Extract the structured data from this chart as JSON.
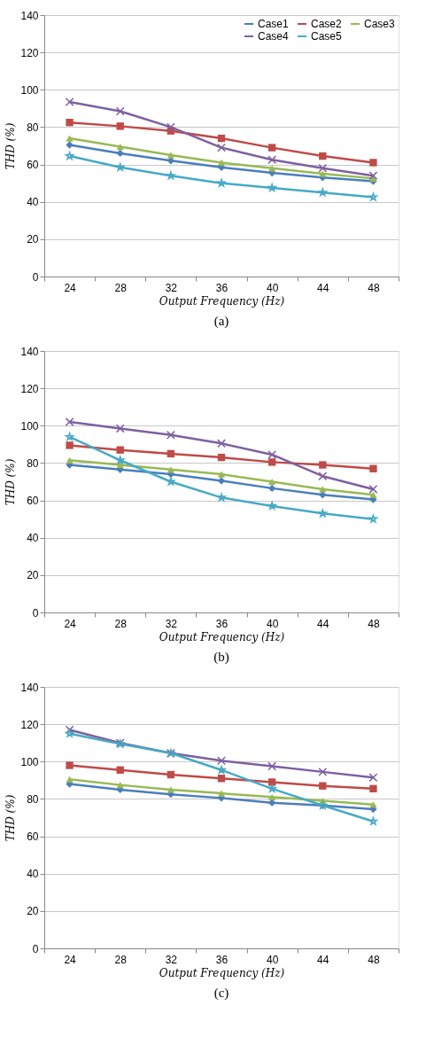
{
  "chart_data": [
    {
      "type": "line",
      "xlabel": "Output Frequency (Hz)",
      "ylabel": "THD (%)",
      "annotations": [
        "(a)"
      ],
      "categories": [
        "24",
        "28",
        "32",
        "36",
        "40",
        "44",
        "48"
      ],
      "ylim": [
        0,
        140
      ],
      "yticks": [
        0,
        20,
        40,
        60,
        80,
        100,
        120,
        140
      ],
      "grid": "y",
      "legend": "top right",
      "series": [
        {
          "name": "Case1",
          "color": "#4a7ebb",
          "marker": "diamond",
          "values": [
            70.5,
            66,
            62,
            58.5,
            55.5,
            53,
            51
          ]
        },
        {
          "name": "Case2",
          "color": "#be4b48",
          "marker": "square",
          "values": [
            82.5,
            80.5,
            78,
            74,
            69,
            64.5,
            61
          ]
        },
        {
          "name": "Case3",
          "color": "#98b954",
          "marker": "triangle",
          "values": [
            74,
            69.5,
            65,
            61,
            58,
            55,
            52.5
          ]
        },
        {
          "name": "Case4",
          "color": "#7d60a0",
          "marker": "cross",
          "values": [
            93.5,
            88.5,
            80,
            69,
            62.5,
            58,
            54
          ]
        },
        {
          "name": "Case5",
          "color": "#46aac5",
          "marker": "star",
          "values": [
            64.5,
            58.5,
            54,
            50,
            47.5,
            45,
            42.5
          ]
        }
      ]
    },
    {
      "type": "line",
      "xlabel": "Output Frequency (Hz)",
      "ylabel": "THD (%)",
      "annotations": [
        "(b)"
      ],
      "categories": [
        "24",
        "28",
        "32",
        "36",
        "40",
        "44",
        "48"
      ],
      "ylim": [
        0,
        140
      ],
      "yticks": [
        0,
        20,
        40,
        60,
        80,
        100,
        120,
        140
      ],
      "grid": "y",
      "legend": "top right",
      "series": [
        {
          "name": "Case1",
          "color": "#4a7ebb",
          "marker": "diamond",
          "values": [
            79,
            76.5,
            74,
            70.5,
            66.5,
            63,
            60.5
          ]
        },
        {
          "name": "Case2",
          "color": "#be4b48",
          "marker": "square",
          "values": [
            89.5,
            87,
            85,
            83,
            80.5,
            79,
            77
          ]
        },
        {
          "name": "Case3",
          "color": "#98b954",
          "marker": "triangle",
          "values": [
            81.5,
            79,
            76.5,
            74,
            70,
            66,
            63
          ]
        },
        {
          "name": "Case4",
          "color": "#7d60a0",
          "marker": "cross",
          "values": [
            102,
            98.5,
            95,
            90.5,
            84.5,
            73,
            66
          ]
        },
        {
          "name": "Case5",
          "color": "#46aac5",
          "marker": "star",
          "values": [
            94,
            81.5,
            70,
            61.5,
            57,
            53,
            50
          ]
        }
      ]
    },
    {
      "type": "line",
      "xlabel": "Output Frequency (Hz)",
      "ylabel": "THD (%)",
      "annotations": [
        "(c)"
      ],
      "categories": [
        "24",
        "28",
        "32",
        "36",
        "40",
        "44",
        "48"
      ],
      "ylim": [
        0,
        140
      ],
      "yticks": [
        0,
        20,
        40,
        60,
        80,
        100,
        120,
        140
      ],
      "grid": "y",
      "legend": "top right",
      "series": [
        {
          "name": "Case1",
          "color": "#4a7ebb",
          "marker": "diamond",
          "values": [
            88,
            85,
            82.5,
            80.5,
            78,
            76.5,
            74.5
          ]
        },
        {
          "name": "Case2",
          "color": "#be4b48",
          "marker": "square",
          "values": [
            98,
            95.5,
            93,
            91,
            89,
            87,
            85.5
          ]
        },
        {
          "name": "Case3",
          "color": "#98b954",
          "marker": "triangle",
          "values": [
            90.5,
            87.5,
            85,
            83,
            81,
            79,
            77
          ]
        },
        {
          "name": "Case4",
          "color": "#7d60a0",
          "marker": "cross",
          "values": [
            117,
            110,
            104.5,
            100.5,
            97.5,
            94.5,
            91.5
          ]
        },
        {
          "name": "Case5",
          "color": "#46aac5",
          "marker": "star",
          "values": [
            115,
            109.5,
            104.5,
            95.5,
            85.5,
            76.5,
            68
          ]
        }
      ]
    }
  ]
}
